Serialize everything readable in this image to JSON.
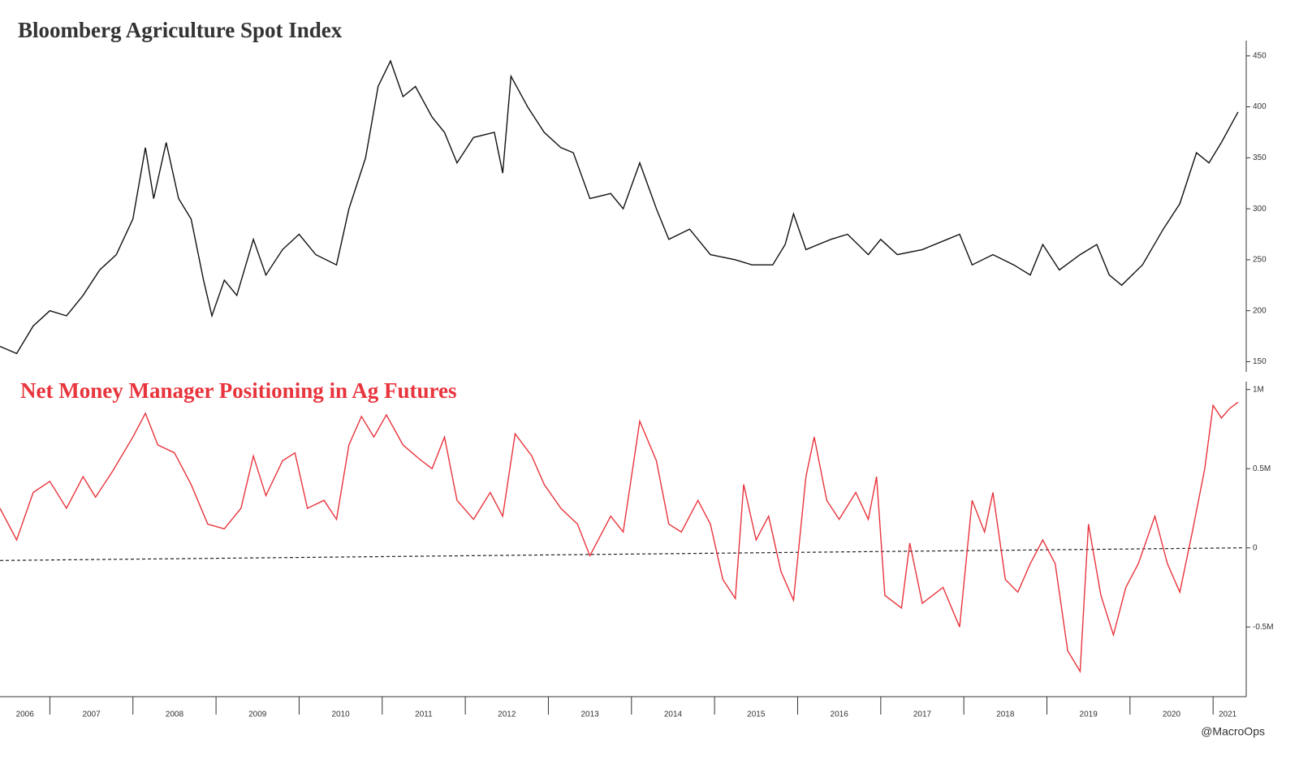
{
  "source": "@MacroOps",
  "chart_data": [
    {
      "type": "line",
      "title": "Bloomberg Agriculture Spot Index",
      "title_color": "#333333",
      "series": [
        {
          "name": "Bloomberg Agriculture Spot Index",
          "color": "#111111",
          "x": [
            2006.4,
            2006.6,
            2006.8,
            2007.0,
            2007.2,
            2007.4,
            2007.6,
            2007.8,
            2008.0,
            2008.15,
            2008.25,
            2008.4,
            2008.55,
            2008.7,
            2008.85,
            2008.95,
            2009.1,
            2009.25,
            2009.45,
            2009.6,
            2009.8,
            2010.0,
            2010.2,
            2010.45,
            2010.6,
            2010.8,
            2010.95,
            2011.1,
            2011.25,
            2011.4,
            2011.6,
            2011.75,
            2011.9,
            2012.1,
            2012.35,
            2012.45,
            2012.55,
            2012.75,
            2012.95,
            2013.15,
            2013.3,
            2013.5,
            2013.75,
            2013.9,
            2014.1,
            2014.3,
            2014.45,
            2014.7,
            2014.95,
            2015.25,
            2015.45,
            2015.7,
            2015.85,
            2015.95,
            2016.1,
            2016.4,
            2016.6,
            2016.85,
            2017.0,
            2017.2,
            2017.5,
            2017.8,
            2017.95,
            2018.1,
            2018.35,
            2018.6,
            2018.8,
            2018.95,
            2019.15,
            2019.4,
            2019.6,
            2019.75,
            2019.9,
            2020.15,
            2020.4,
            2020.6,
            2020.8,
            2020.95,
            2021.1,
            2021.3
          ],
          "values": [
            165,
            158,
            185,
            200,
            195,
            215,
            240,
            255,
            290,
            360,
            310,
            365,
            310,
            290,
            230,
            195,
            230,
            215,
            270,
            235,
            260,
            275,
            255,
            245,
            300,
            350,
            420,
            445,
            410,
            420,
            390,
            375,
            345,
            370,
            375,
            335,
            430,
            400,
            375,
            360,
            355,
            310,
            315,
            300,
            345,
            300,
            270,
            280,
            255,
            250,
            245,
            245,
            265,
            295,
            260,
            270,
            275,
            255,
            270,
            255,
            260,
            270,
            275,
            245,
            255,
            245,
            235,
            265,
            240,
            255,
            265,
            235,
            225,
            245,
            280,
            305,
            355,
            345,
            365,
            395
          ]
        }
      ],
      "xlim": [
        2006.4,
        2021.35
      ],
      "ylim": [
        140,
        465
      ],
      "yticks": [
        150,
        200,
        250,
        300,
        350,
        400,
        450
      ]
    },
    {
      "type": "line",
      "title": "Net Money Manager Positioning in Ag Futures",
      "title_color": "#e8343c",
      "series": [
        {
          "name": "Net Money Manager Positioning in Ag Futures",
          "color": "#e8343c",
          "x": [
            2006.4,
            2006.6,
            2006.8,
            2007.0,
            2007.2,
            2007.4,
            2007.55,
            2007.75,
            2008.0,
            2008.15,
            2008.3,
            2008.5,
            2008.7,
            2008.9,
            2009.1,
            2009.3,
            2009.45,
            2009.6,
            2009.8,
            2009.95,
            2010.1,
            2010.3,
            2010.45,
            2010.6,
            2010.75,
            2010.9,
            2011.05,
            2011.25,
            2011.45,
            2011.6,
            2011.75,
            2011.9,
            2012.1,
            2012.3,
            2012.45,
            2012.6,
            2012.8,
            2012.95,
            2013.15,
            2013.35,
            2013.5,
            2013.75,
            2013.9,
            2014.1,
            2014.3,
            2014.45,
            2014.6,
            2014.8,
            2014.95,
            2015.1,
            2015.25,
            2015.35,
            2015.5,
            2015.65,
            2015.8,
            2015.95,
            2016.1,
            2016.2,
            2016.35,
            2016.5,
            2016.7,
            2016.85,
            2016.95,
            2017.05,
            2017.25,
            2017.35,
            2017.5,
            2017.75,
            2017.95,
            2018.1,
            2018.25,
            2018.35,
            2018.5,
            2018.65,
            2018.8,
            2018.95,
            2019.1,
            2019.25,
            2019.4,
            2019.5,
            2019.65,
            2019.8,
            2019.95,
            2020.1,
            2020.3,
            2020.45,
            2020.6,
            2020.75,
            2020.9,
            2021.0,
            2021.1,
            2021.2,
            2021.3
          ],
          "values": [
            250000,
            50000,
            350000,
            420000,
            250000,
            450000,
            320000,
            480000,
            700000,
            850000,
            650000,
            600000,
            400000,
            150000,
            120000,
            250000,
            580000,
            330000,
            550000,
            600000,
            250000,
            300000,
            180000,
            650000,
            830000,
            700000,
            840000,
            650000,
            560000,
            500000,
            700000,
            300000,
            180000,
            350000,
            200000,
            720000,
            580000,
            400000,
            250000,
            150000,
            -50000,
            200000,
            100000,
            800000,
            550000,
            150000,
            100000,
            300000,
            150000,
            -200000,
            -320000,
            400000,
            50000,
            200000,
            -150000,
            -330000,
            450000,
            700000,
            300000,
            180000,
            350000,
            180000,
            450000,
            -300000,
            -380000,
            30000,
            -350000,
            -250000,
            -500000,
            300000,
            100000,
            350000,
            -200000,
            -280000,
            -100000,
            50000,
            -100000,
            -650000,
            -780000,
            150000,
            -300000,
            -550000,
            -250000,
            -100000,
            200000,
            -100000,
            -280000,
            100000,
            500000,
            900000,
            820000,
            880000,
            920000
          ]
        }
      ],
      "trend": {
        "color": "#222222",
        "dashed": true,
        "x": [
          2006.4,
          2021.35
        ],
        "values": [
          -80000,
          0
        ]
      },
      "xlim": [
        2006.4,
        2021.35
      ],
      "xticks": [
        2006,
        2007,
        2008,
        2009,
        2010,
        2011,
        2012,
        2013,
        2014,
        2015,
        2016,
        2017,
        2018,
        2019,
        2020,
        2021
      ],
      "ylim": [
        -940000,
        1050000
      ],
      "yticks": [
        {
          "value": -500000,
          "label": "-0.5M"
        },
        0,
        {
          "value": 500000,
          "label": "0.5M"
        },
        {
          "value": 1000000,
          "label": "1M"
        }
      ]
    }
  ]
}
